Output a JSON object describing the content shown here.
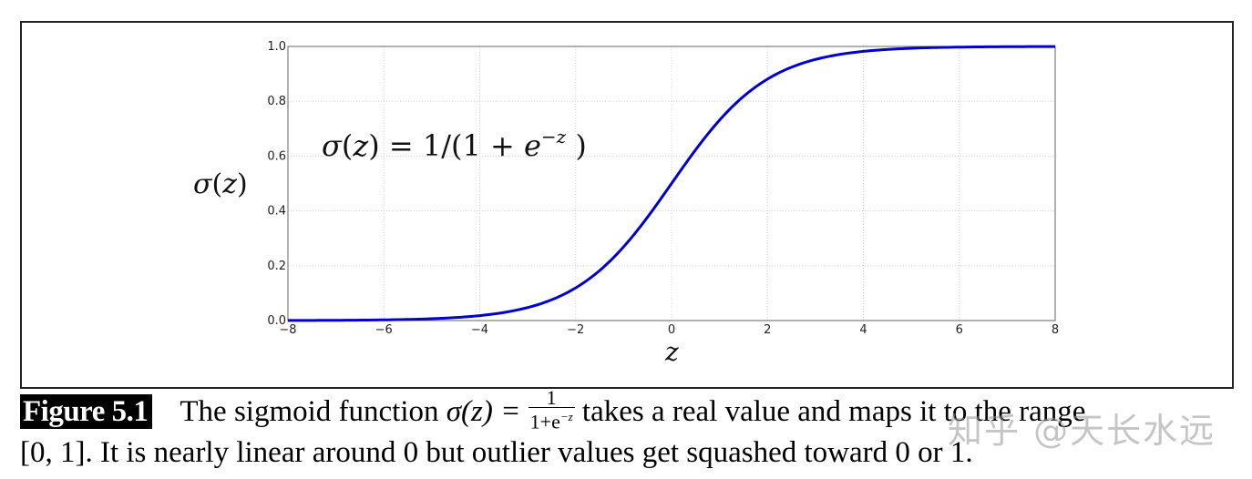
{
  "figure": {
    "label": "Figure 5.1",
    "caption_line1_before": "The sigmoid function ",
    "caption_math_lhs": "σ(z) = ",
    "caption_frac_num": "1",
    "caption_frac_den": "1+e",
    "caption_frac_den_exp": "−z",
    "caption_line1_after": " takes a real value and maps it to the range",
    "caption_line2": "[0, 1]. It is nearly linear around 0 but outlier values get squashed toward 0 or 1."
  },
  "watermark": "知乎 @天长水远",
  "chart_data": {
    "type": "line",
    "title": "",
    "annotation": "σ(z) = 1/(1 + e^{−z})",
    "xlabel": "z",
    "ylabel": "σ(z)",
    "xlim": [
      -8,
      8
    ],
    "ylim": [
      0.0,
      1.0
    ],
    "xticks": [
      "−8",
      "−6",
      "−4",
      "−2",
      "0",
      "2",
      "4",
      "6",
      "8"
    ],
    "yticks": [
      "0.0",
      "0.2",
      "0.4",
      "0.6",
      "0.8",
      "1.0"
    ],
    "grid": true,
    "legend": null,
    "series": [
      {
        "name": "sigmoid",
        "color": "#0000cc",
        "x": [
          -8,
          -7,
          -6,
          -5,
          -4,
          -3,
          -2,
          -1,
          0,
          1,
          2,
          3,
          4,
          5,
          6,
          7,
          8
        ],
        "y": [
          0.0003,
          0.0009,
          0.0025,
          0.0067,
          0.018,
          0.047,
          0.119,
          0.269,
          0.5,
          0.731,
          0.881,
          0.953,
          0.982,
          0.993,
          0.998,
          0.999,
          1.0
        ]
      }
    ]
  }
}
